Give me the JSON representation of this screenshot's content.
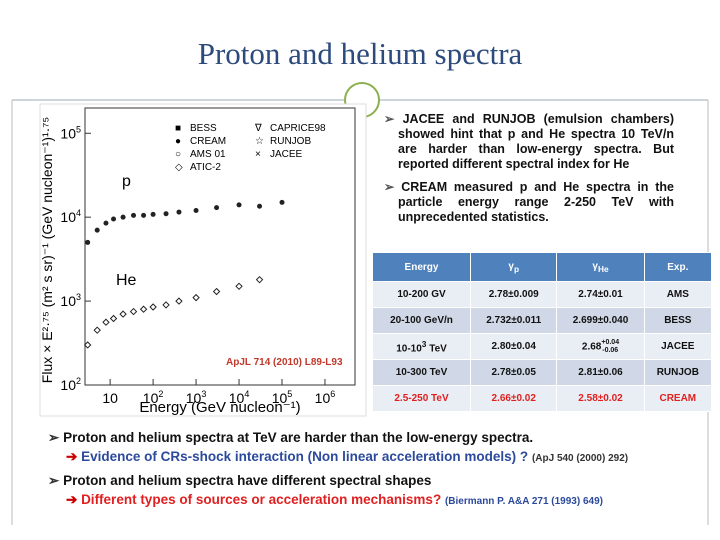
{
  "title": "Proton and helium spectra",
  "figure": {
    "ylabel": "Flux × E²·⁷⁵ (m² s sr)⁻¹ (GeV nucleon⁻¹)¹·⁷⁵",
    "xlabel": "Energy (GeV nucleon⁻¹)",
    "log_x": true,
    "log_y": true,
    "xlim": [
      2.6,
      5000000
    ],
    "ylim": [
      100,
      200000
    ],
    "xticks": [
      10,
      {
        "value": 100,
        "label": "10",
        "sup": "2"
      },
      {
        "value": 1000,
        "label": "10",
        "sup": "3"
      },
      {
        "value": 10000,
        "label": "10",
        "sup": "4"
      },
      {
        "value": 100000,
        "label": "10",
        "sup": "5"
      },
      {
        "value": 1000000,
        "label": "10",
        "sup": "6"
      }
    ],
    "yticks": [
      {
        "value": 100,
        "label": "10",
        "sup": "2"
      },
      {
        "value": 1000,
        "label": "10",
        "sup": "3"
      },
      {
        "value": 10000,
        "label": "10",
        "sup": "4"
      },
      {
        "value": 100000,
        "label": "10",
        "sup": "5"
      }
    ],
    "legend": [
      "BESS",
      "CAPRICE98",
      "CREAM",
      "RUNJOB",
      "AMS 01",
      "JACEE",
      "ATIC-2"
    ],
    "citation": "ApJL 714 (2010) L89-L93",
    "series": [
      {
        "name": "p",
        "color": "#222222",
        "x": [
          3,
          5,
          8,
          12,
          20,
          35,
          60,
          100,
          200,
          400,
          1000,
          3000,
          10000,
          30000,
          100000
        ],
        "y": [
          5000,
          7000,
          8500,
          9500,
          10000,
          10500,
          10500,
          10800,
          11000,
          11500,
          12000,
          13000,
          14000,
          13500,
          15000
        ]
      },
      {
        "name": "He",
        "color": "#222222",
        "x": [
          3,
          5,
          8,
          12,
          20,
          35,
          60,
          100,
          200,
          400,
          1000,
          3000,
          10000,
          30000
        ],
        "y": [
          300,
          450,
          560,
          620,
          700,
          750,
          800,
          850,
          900,
          1000,
          1100,
          1300,
          1500,
          1800
        ]
      }
    ]
  },
  "notes": [
    "JACEE and RUNJOB (emulsion chambers) showed hint that p and He spectra 10 TeV/n are harder than low-energy spectra. But reported different spectral index for He",
    "CREAM measured p and He spectra in the particle energy range 2-250 TeV with unprecedented statistics."
  ],
  "table": {
    "header": [
      "Energy",
      [
        "γ",
        {
          "sub": "p"
        }
      ],
      [
        "γ",
        {
          "sub": "He"
        }
      ],
      "Exp."
    ],
    "rows": [
      [
        "10-200 GV",
        "2.78±0.009",
        "2.74±0.01",
        "AMS"
      ],
      [
        "20-100 GeV/n",
        "2.732±0.011",
        "2.699±0.040",
        "BESS"
      ],
      [
        [
          "10-10",
          {
            "sup": "3"
          },
          " TeV"
        ],
        "2.80±0.04",
        [
          "2.68",
          {
            "sup": "+0.04",
            "sub": "-0.06"
          }
        ],
        "JACEE"
      ],
      [
        "10-300 TeV",
        "2.78±0.05",
        "2.81±0.06",
        "RUNJOB"
      ],
      [
        "2.5-250 TeV",
        "2.66±0.02",
        "2.58±0.02",
        "CREAM"
      ]
    ]
  },
  "bullets": [
    {
      "text": "Proton and helium spectra at TeV are harder than the low-energy spectra.",
      "sub": "Evidence of CRs-shock interaction (Non linear acceleration models) ?",
      "ref": "(ApJ 540 (2000) 292)"
    },
    {
      "text": "Proton and helium spectra have different spectral shapes",
      "sub": "Different types of sources or acceleration mechanisms?",
      "ref": "(Biermann P. A&A 271 (1993) 649)"
    }
  ]
}
